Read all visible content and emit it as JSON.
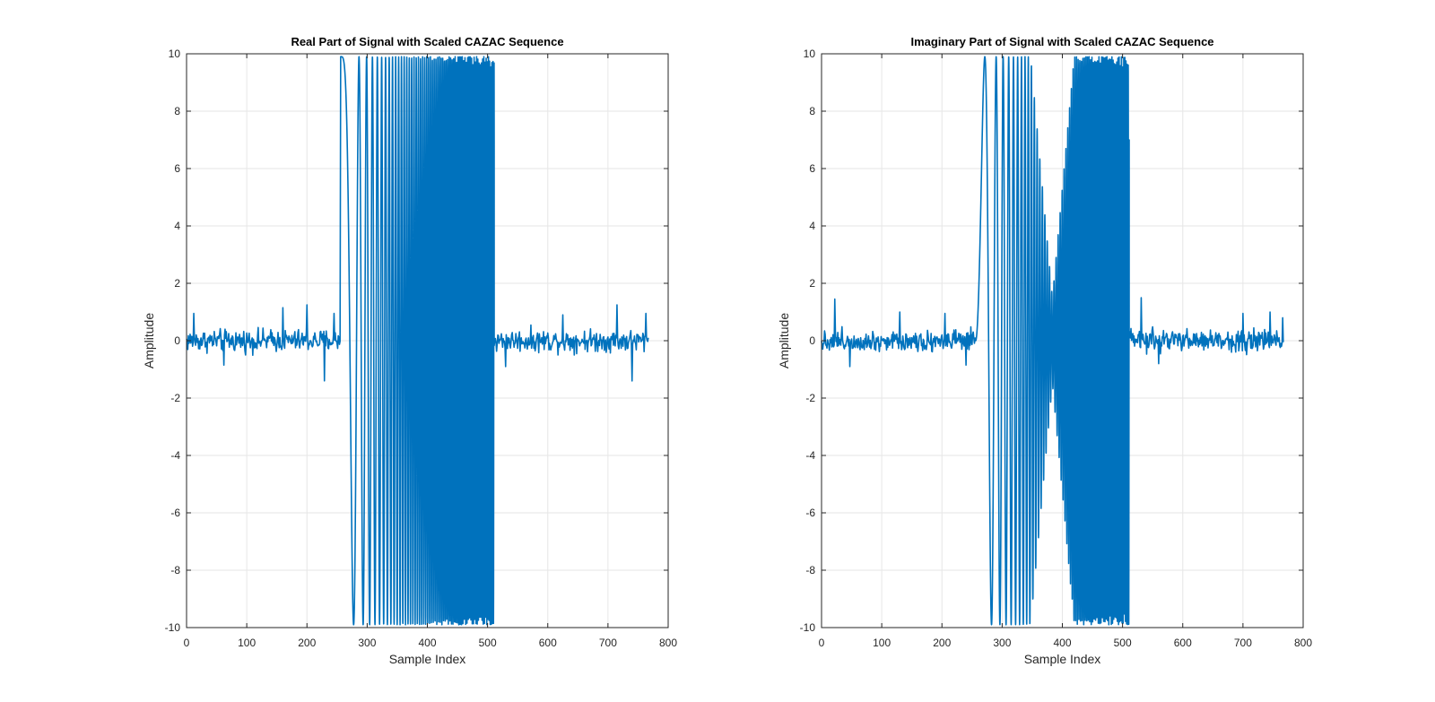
{
  "figure": {
    "background": "#ffffff"
  },
  "chart_data": [
    {
      "type": "line",
      "title": "Real Part of Signal with Scaled CAZAC Sequence",
      "xlabel": "Sample Index",
      "ylabel": "Amplitude",
      "xlim": [
        0,
        800
      ],
      "ylim": [
        -10,
        10
      ],
      "xticks": [
        "0",
        "100",
        "200",
        "300",
        "400",
        "500",
        "600",
        "700",
        "800"
      ],
      "yticks": [
        "-10",
        "-8",
        "-6",
        "-4",
        "-2",
        "0",
        "2",
        "4",
        "6",
        "8",
        "10"
      ],
      "grid": true,
      "series_color": "#0072BD",
      "series": [
        {
          "segments": [
            {
              "kind": "noise",
              "x_start": 0,
              "x_end": 256,
              "noise_amplitude": 0.5,
              "extremes": [
                [
                  12,
                  0.95
                ],
                [
                  62,
                  -0.85
                ],
                [
                  160,
                  1.15
                ],
                [
                  200,
                  1.25
                ],
                [
                  229,
                  -1.4
                ],
                [
                  245,
                  0.95
                ]
              ]
            },
            {
              "kind": "chirp",
              "x_start": 256,
              "x_end": 511,
              "amplitude": 9.9,
              "envelope": "full",
              "phase": "real"
            },
            {
              "kind": "noise",
              "x_start": 511,
              "x_end": 768,
              "noise_amplitude": 0.5,
              "extremes": [
                [
                  530,
                  -0.9
                ],
                [
                  625,
                  0.9
                ],
                [
                  715,
                  1.25
                ],
                [
                  740,
                  -1.4
                ],
                [
                  763,
                  0.95
                ]
              ]
            }
          ]
        }
      ]
    },
    {
      "type": "line",
      "title": "Imaginary Part of Signal with Scaled CAZAC Sequence",
      "xlabel": "Sample Index",
      "ylabel": "Amplitude",
      "xlim": [
        0,
        800
      ],
      "ylim": [
        -10,
        10
      ],
      "xticks": [
        "0",
        "100",
        "200",
        "300",
        "400",
        "500",
        "600",
        "700",
        "800"
      ],
      "yticks": [
        "-10",
        "-8",
        "-6",
        "-4",
        "-2",
        "0",
        "2",
        "4",
        "6",
        "8",
        "10"
      ],
      "grid": true,
      "series_color": "#0072BD",
      "series": [
        {
          "segments": [
            {
              "kind": "noise",
              "x_start": 0,
              "x_end": 256,
              "noise_amplitude": 0.5,
              "extremes": [
                [
                  22,
                  1.45
                ],
                [
                  47,
                  -0.9
                ],
                [
                  130,
                  1.0
                ],
                [
                  205,
                  0.95
                ],
                [
                  240,
                  -0.85
                ]
              ]
            },
            {
              "kind": "chirp",
              "x_start": 256,
              "x_end": 511,
              "amplitude": 9.9,
              "envelope": "null_at_center",
              "phase": "imag"
            },
            {
              "kind": "noise",
              "x_start": 511,
              "x_end": 768,
              "noise_amplitude": 0.5,
              "extremes": [
                [
                  531,
                  1.5
                ],
                [
                  560,
                  -0.8
                ],
                [
                  700,
                  0.95
                ],
                [
                  745,
                  1.0
                ],
                [
                  766,
                  0.8
                ]
              ]
            }
          ]
        }
      ]
    }
  ]
}
